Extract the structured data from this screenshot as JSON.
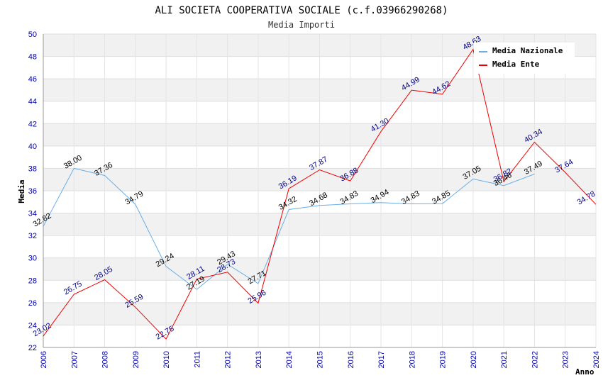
{
  "chart_data": {
    "type": "line",
    "title": "ALI SOCIETA COOPERATIVA SOCIALE (c.f.03966290268)",
    "subtitle": "Media Importi",
    "xlabel": "Anno",
    "ylabel": "Media",
    "ylim": [
      22,
      50
    ],
    "y_ticks": [
      "22",
      "24",
      "26",
      "28",
      "30",
      "32",
      "34",
      "36",
      "38",
      "40",
      "42",
      "44",
      "46",
      "48",
      "50"
    ],
    "x": [
      "2006",
      "2007",
      "2008",
      "2009",
      "2010",
      "2011",
      "2012",
      "2013",
      "2014",
      "2015",
      "2016",
      "2017",
      "2018",
      "2019",
      "2020",
      "2021",
      "2022",
      "2023",
      "2024"
    ],
    "legend_position": "top-right",
    "grid": true,
    "series": [
      {
        "name": "Media Nazionale",
        "color": "#6aaee8",
        "values": [
          32.82,
          38.0,
          37.36,
          34.79,
          29.24,
          27.19,
          29.43,
          27.71,
          34.32,
          34.68,
          34.83,
          34.94,
          34.83,
          34.85,
          37.05,
          36.46,
          37.49,
          null,
          null
        ],
        "labels": [
          "32.82",
          "38.00",
          "37.36",
          "34.79",
          "29.24",
          "27.19",
          "29.43",
          "27.71",
          "34.32",
          "34.68",
          "34.83",
          "34.94",
          "34.83",
          "34.85",
          "37.05",
          "36.46",
          "37.49",
          "",
          ""
        ]
      },
      {
        "name": "Media Ente",
        "color": "#ee0000",
        "values": [
          23.02,
          26.75,
          28.05,
          25.59,
          22.75,
          28.11,
          28.73,
          25.96,
          36.19,
          37.87,
          36.88,
          41.3,
          44.99,
          44.62,
          48.63,
          36.82,
          40.34,
          37.64,
          34.78
        ],
        "labels": [
          "23.02",
          "26.75",
          "28.05",
          "25.59",
          "22.75",
          "28.11",
          "28.73",
          "25.96",
          "36.19",
          "37.87",
          "36.88",
          "41.30",
          "44.99",
          "44.62",
          "48.63",
          "36.82",
          "40.34",
          "37.64",
          "34.78"
        ]
      }
    ]
  }
}
